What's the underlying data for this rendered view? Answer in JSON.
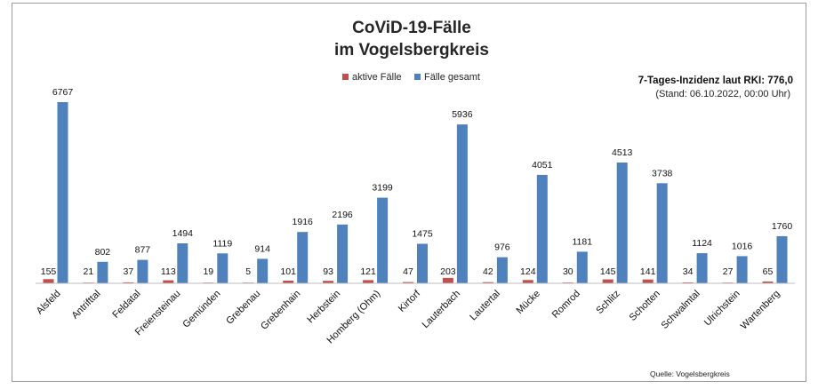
{
  "chart_data": {
    "type": "bar",
    "title": "CoViD-19-Fälle",
    "subtitle": "im Vogelsbergkreis",
    "legend_position": "top-center",
    "grid": false,
    "ylim": [
      0,
      7000
    ],
    "categories": [
      "Alsfeld",
      "Antrifttal",
      "Feldatal",
      "Freiensteinau",
      "Gemünden",
      "Grebenau",
      "Grebenhain",
      "Herbstein",
      "Homberg (Ohm)",
      "Kirtorf",
      "Lauterbach",
      "Lautertal",
      "Mücke",
      "Romrod",
      "Schlitz",
      "Schotten",
      "Schwalmtal",
      "Ulrichstein",
      "Wartenberg"
    ],
    "series": [
      {
        "name": "aktive Fälle",
        "color": "#c0504d",
        "values": [
          155,
          21,
          37,
          113,
          19,
          5,
          101,
          93,
          121,
          47,
          203,
          42,
          124,
          30,
          145,
          141,
          34,
          27,
          65
        ]
      },
      {
        "name": "Fälle gesamt",
        "color": "#4f81bd",
        "values": [
          6767,
          802,
          877,
          1494,
          1119,
          914,
          1916,
          2196,
          3199,
          1475,
          5936,
          976,
          4051,
          1181,
          4513,
          3738,
          1124,
          1016,
          1760
        ]
      }
    ],
    "annotations": {
      "incidence": "7-Tages-Inzidenz laut RKI: 776,0",
      "date": "(Stand: 06.10.2022, 00:00 Uhr)",
      "source": "Quelle: Vogelsbergkreis"
    }
  }
}
